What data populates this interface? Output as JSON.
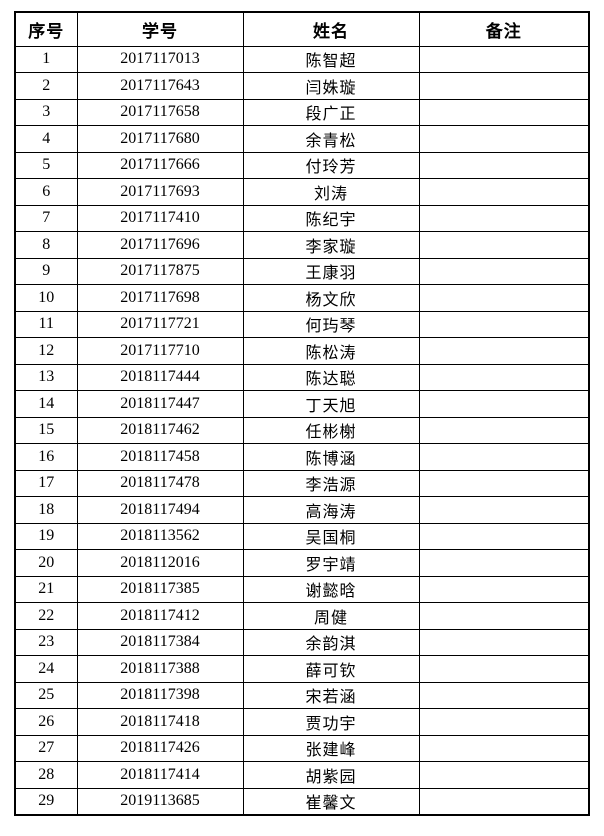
{
  "page": {
    "background_color": "#ffffff",
    "text_color": "#000000",
    "border_color": "#000000"
  },
  "table": {
    "headers": [
      "序号",
      "学号",
      "姓名",
      "备注"
    ],
    "rows": [
      {
        "index": "1",
        "student_id": "2017117013",
        "name": "陈智超",
        "remark": ""
      },
      {
        "index": "2",
        "student_id": "2017117643",
        "name": "闫姝璇",
        "remark": ""
      },
      {
        "index": "3",
        "student_id": "2017117658",
        "name": "段广正",
        "remark": ""
      },
      {
        "index": "4",
        "student_id": "2017117680",
        "name": "余青松",
        "remark": ""
      },
      {
        "index": "5",
        "student_id": "2017117666",
        "name": "付玲芳",
        "remark": ""
      },
      {
        "index": "6",
        "student_id": "2017117693",
        "name": "刘涛",
        "remark": ""
      },
      {
        "index": "7",
        "student_id": "2017117410",
        "name": "陈纪宇",
        "remark": ""
      },
      {
        "index": "8",
        "student_id": "2017117696",
        "name": "李家璇",
        "remark": ""
      },
      {
        "index": "9",
        "student_id": "2017117875",
        "name": "王康羽",
        "remark": ""
      },
      {
        "index": "10",
        "student_id": "2017117698",
        "name": "杨文欣",
        "remark": ""
      },
      {
        "index": "11",
        "student_id": "2017117721",
        "name": "何玙琴",
        "remark": ""
      },
      {
        "index": "12",
        "student_id": "2017117710",
        "name": "陈松涛",
        "remark": ""
      },
      {
        "index": "13",
        "student_id": "2018117444",
        "name": "陈达聪",
        "remark": ""
      },
      {
        "index": "14",
        "student_id": "2018117447",
        "name": "丁天旭",
        "remark": ""
      },
      {
        "index": "15",
        "student_id": "2018117462",
        "name": "任彬榭",
        "remark": ""
      },
      {
        "index": "16",
        "student_id": "2018117458",
        "name": "陈博涵",
        "remark": ""
      },
      {
        "index": "17",
        "student_id": "2018117478",
        "name": "李浩源",
        "remark": ""
      },
      {
        "index": "18",
        "student_id": "2018117494",
        "name": "高海涛",
        "remark": ""
      },
      {
        "index": "19",
        "student_id": "2018113562",
        "name": "吴国桐",
        "remark": ""
      },
      {
        "index": "20",
        "student_id": "2018112016",
        "name": "罗宇靖",
        "remark": ""
      },
      {
        "index": "21",
        "student_id": "2018117385",
        "name": "谢懿晗",
        "remark": ""
      },
      {
        "index": "22",
        "student_id": "2018117412",
        "name": "周健",
        "remark": ""
      },
      {
        "index": "23",
        "student_id": "2018117384",
        "name": "余韵淇",
        "remark": ""
      },
      {
        "index": "24",
        "student_id": "2018117388",
        "name": "薛可钦",
        "remark": ""
      },
      {
        "index": "25",
        "student_id": "2018117398",
        "name": "宋若涵",
        "remark": ""
      },
      {
        "index": "26",
        "student_id": "2018117418",
        "name": "贾功宇",
        "remark": ""
      },
      {
        "index": "27",
        "student_id": "2018117426",
        "name": "张建峰",
        "remark": ""
      },
      {
        "index": "28",
        "student_id": "2018117414",
        "name": "胡紫园",
        "remark": ""
      },
      {
        "index": "29",
        "student_id": "2019113685",
        "name": "崔馨文",
        "remark": ""
      }
    ]
  }
}
